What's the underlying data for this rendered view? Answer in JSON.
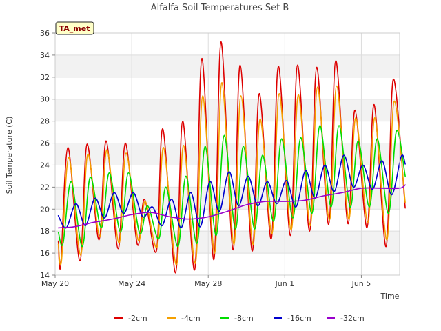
{
  "chart_data": {
    "type": "line",
    "title": "Alfalfa Soil Temperatures Set B",
    "xlabel": "Time",
    "ylabel": "Soil Temperature (C)",
    "badge": "TA_met",
    "ylim": [
      14,
      36
    ],
    "xlim": [
      "2024-05-20",
      "2024-06-07"
    ],
    "yticks": [
      14,
      16,
      18,
      20,
      22,
      24,
      26,
      28,
      30,
      32,
      34,
      36
    ],
    "xticks": [
      {
        "date": "2024-05-20",
        "label": "May 20"
      },
      {
        "date": "2024-05-24",
        "label": "May 24"
      },
      {
        "date": "2024-05-28",
        "label": "May 28"
      },
      {
        "date": "2024-06-01",
        "label": "Jun 1"
      },
      {
        "date": "2024-06-05",
        "label": "Jun 5"
      }
    ],
    "grid": true,
    "legend": "bottom",
    "series": [
      {
        "name": "-2cm",
        "color": "#dd0000",
        "points": [
          [
            "2024-05-20 04:00",
            17.1
          ],
          [
            "2024-05-20 07:00",
            14.9
          ],
          [
            "2024-05-20 16:00",
            25.6
          ],
          [
            "2024-05-21 07:00",
            15.3
          ],
          [
            "2024-05-21 16:00",
            25.9
          ],
          [
            "2024-05-22 07:00",
            17.2
          ],
          [
            "2024-05-22 16:00",
            26.2
          ],
          [
            "2024-05-23 07:00",
            16.4
          ],
          [
            "2024-05-23 16:00",
            26.0
          ],
          [
            "2024-05-24 07:00",
            16.8
          ],
          [
            "2024-05-24 16:00",
            20.9
          ],
          [
            "2024-05-25 07:00",
            16.2
          ],
          [
            "2024-05-25 15:00",
            27.3
          ],
          [
            "2024-05-26 07:00",
            14.2
          ],
          [
            "2024-05-26 16:00",
            28.0
          ],
          [
            "2024-05-27 07:00",
            14.5
          ],
          [
            "2024-05-27 16:00",
            33.7
          ],
          [
            "2024-05-28 07:00",
            15.4
          ],
          [
            "2024-05-28 16:00",
            35.2
          ],
          [
            "2024-05-29 07:00",
            16.3
          ],
          [
            "2024-05-29 16:00",
            33.1
          ],
          [
            "2024-05-30 07:00",
            16.2
          ],
          [
            "2024-05-30 16:00",
            30.5
          ],
          [
            "2024-05-31 07:00",
            17.3
          ],
          [
            "2024-05-31 16:00",
            33.0
          ],
          [
            "2024-06-01 07:00",
            17.6
          ],
          [
            "2024-06-01 16:00",
            33.1
          ],
          [
            "2024-06-02 07:00",
            18.0
          ],
          [
            "2024-06-02 16:00",
            32.9
          ],
          [
            "2024-06-03 07:00",
            18.6
          ],
          [
            "2024-06-03 16:00",
            33.5
          ],
          [
            "2024-06-04 07:00",
            18.7
          ],
          [
            "2024-06-04 16:00",
            29.0
          ],
          [
            "2024-06-05 07:00",
            18.3
          ],
          [
            "2024-06-05 16:00",
            29.5
          ],
          [
            "2024-06-06 07:00",
            16.6
          ],
          [
            "2024-06-06 16:00",
            31.8
          ],
          [
            "2024-06-07 07:00",
            20.1
          ]
        ]
      },
      {
        "name": "-4cm",
        "color": "#f5a000",
        "points": [
          [
            "2024-05-20 04:00",
            16.8
          ],
          [
            "2024-05-20 08:00",
            15.3
          ],
          [
            "2024-05-20 17:00",
            24.7
          ],
          [
            "2024-05-21 08:00",
            15.8
          ],
          [
            "2024-05-21 17:00",
            25.0
          ],
          [
            "2024-05-22 08:00",
            17.5
          ],
          [
            "2024-05-22 17:00",
            25.4
          ],
          [
            "2024-05-23 08:00",
            16.9
          ],
          [
            "2024-05-23 17:00",
            25.1
          ],
          [
            "2024-05-24 08:00",
            17.2
          ],
          [
            "2024-05-24 17:00",
            20.7
          ],
          [
            "2024-05-25 08:00",
            16.6
          ],
          [
            "2024-05-25 16:00",
            25.6
          ],
          [
            "2024-05-26 08:00",
            14.9
          ],
          [
            "2024-05-26 17:00",
            25.8
          ],
          [
            "2024-05-27 08:00",
            15.1
          ],
          [
            "2024-05-27 17:00",
            30.3
          ],
          [
            "2024-05-28 08:00",
            16.0
          ],
          [
            "2024-05-28 17:00",
            31.5
          ],
          [
            "2024-05-29 08:00",
            16.8
          ],
          [
            "2024-05-29 17:00",
            30.3
          ],
          [
            "2024-05-30 08:00",
            16.8
          ],
          [
            "2024-05-30 17:00",
            28.2
          ],
          [
            "2024-05-31 08:00",
            17.8
          ],
          [
            "2024-05-31 17:00",
            30.5
          ],
          [
            "2024-06-01 08:00",
            18.1
          ],
          [
            "2024-06-01 17:00",
            30.4
          ],
          [
            "2024-06-02 08:00",
            18.5
          ],
          [
            "2024-06-02 17:00",
            31.1
          ],
          [
            "2024-06-03 08:00",
            19.0
          ],
          [
            "2024-06-03 17:00",
            31.2
          ],
          [
            "2024-06-04 08:00",
            19.1
          ],
          [
            "2024-06-04 17:00",
            28.3
          ],
          [
            "2024-06-05 08:00",
            18.8
          ],
          [
            "2024-06-05 17:00",
            28.3
          ],
          [
            "2024-06-06 08:00",
            17.2
          ],
          [
            "2024-06-06 17:00",
            29.8
          ],
          [
            "2024-06-07 07:00",
            20.6
          ]
        ]
      },
      {
        "name": "-8cm",
        "color": "#00dd00",
        "points": [
          [
            "2024-05-20 04:00",
            17.9
          ],
          [
            "2024-05-20 10:00",
            16.9
          ],
          [
            "2024-05-20 20:00",
            22.5
          ],
          [
            "2024-05-21 10:00",
            16.6
          ],
          [
            "2024-05-21 20:00",
            22.9
          ],
          [
            "2024-05-22 10:00",
            18.3
          ],
          [
            "2024-05-22 20:00",
            23.3
          ],
          [
            "2024-05-23 10:00",
            17.9
          ],
          [
            "2024-05-23 20:00",
            23.3
          ],
          [
            "2024-05-24 10:00",
            17.8
          ],
          [
            "2024-05-24 20:00",
            20.3
          ],
          [
            "2024-05-25 10:00",
            17.3
          ],
          [
            "2024-05-25 19:00",
            22.0
          ],
          [
            "2024-05-26 10:00",
            16.6
          ],
          [
            "2024-05-26 20:00",
            23.0
          ],
          [
            "2024-05-27 10:00",
            16.9
          ],
          [
            "2024-05-27 20:00",
            25.7
          ],
          [
            "2024-05-28 10:00",
            17.6
          ],
          [
            "2024-05-28 20:00",
            26.7
          ],
          [
            "2024-05-29 10:00",
            18.2
          ],
          [
            "2024-05-29 20:00",
            25.7
          ],
          [
            "2024-05-30 10:00",
            18.2
          ],
          [
            "2024-05-30 20:00",
            24.9
          ],
          [
            "2024-05-31 10:00",
            18.9
          ],
          [
            "2024-05-31 20:00",
            26.4
          ],
          [
            "2024-06-01 10:00",
            19.2
          ],
          [
            "2024-06-01 20:00",
            26.5
          ],
          [
            "2024-06-02 10:00",
            19.6
          ],
          [
            "2024-06-02 20:00",
            27.6
          ],
          [
            "2024-06-03 10:00",
            20.2
          ],
          [
            "2024-06-03 20:00",
            27.6
          ],
          [
            "2024-06-04 10:00",
            20.2
          ],
          [
            "2024-06-04 20:00",
            26.2
          ],
          [
            "2024-06-05 10:00",
            20.2
          ],
          [
            "2024-06-05 20:00",
            26.4
          ],
          [
            "2024-06-06 10:00",
            19.6
          ],
          [
            "2024-06-06 20:00",
            27.1
          ],
          [
            "2024-06-07 07:00",
            23.0
          ]
        ]
      },
      {
        "name": "-16cm",
        "color": "#0000cc",
        "points": [
          [
            "2024-05-20 04:00",
            19.4
          ],
          [
            "2024-05-20 14:00",
            18.3
          ],
          [
            "2024-05-21 02:00",
            20.5
          ],
          [
            "2024-05-21 14:00",
            18.5
          ],
          [
            "2024-05-22 02:00",
            21.0
          ],
          [
            "2024-05-22 14:00",
            19.2
          ],
          [
            "2024-05-23 02:00",
            21.5
          ],
          [
            "2024-05-23 14:00",
            19.6
          ],
          [
            "2024-05-24 02:00",
            21.5
          ],
          [
            "2024-05-24 14:00",
            19.3
          ],
          [
            "2024-05-25 02:00",
            20.2
          ],
          [
            "2024-05-25 14:00",
            18.5
          ],
          [
            "2024-05-26 02:00",
            20.9
          ],
          [
            "2024-05-26 14:00",
            18.3
          ],
          [
            "2024-05-27 02:00",
            21.5
          ],
          [
            "2024-05-27 14:00",
            18.4
          ],
          [
            "2024-05-28 02:00",
            22.5
          ],
          [
            "2024-05-28 14:00",
            19.8
          ],
          [
            "2024-05-29 02:00",
            23.4
          ],
          [
            "2024-05-29 14:00",
            20.3
          ],
          [
            "2024-05-30 02:00",
            23.0
          ],
          [
            "2024-05-30 14:00",
            20.3
          ],
          [
            "2024-05-31 02:00",
            22.5
          ],
          [
            "2024-05-31 14:00",
            20.5
          ],
          [
            "2024-06-01 02:00",
            22.6
          ],
          [
            "2024-06-01 14:00",
            20.2
          ],
          [
            "2024-06-02 02:00",
            23.5
          ],
          [
            "2024-06-02 14:00",
            21.0
          ],
          [
            "2024-06-03 02:00",
            24.0
          ],
          [
            "2024-06-03 14:00",
            21.6
          ],
          [
            "2024-06-04 02:00",
            24.9
          ],
          [
            "2024-06-04 14:00",
            22.0
          ],
          [
            "2024-06-05 02:00",
            24.0
          ],
          [
            "2024-06-05 14:00",
            21.8
          ],
          [
            "2024-06-06 02:00",
            24.4
          ],
          [
            "2024-06-06 14:00",
            21.3
          ],
          [
            "2024-06-07 02:00",
            24.8
          ],
          [
            "2024-06-07 07:00",
            24.1
          ]
        ]
      },
      {
        "name": "-32cm",
        "color": "#9900cc",
        "points": [
          [
            "2024-05-20 04:00",
            18.3
          ],
          [
            "2024-05-21 00:00",
            18.4
          ],
          [
            "2024-05-22 00:00",
            18.8
          ],
          [
            "2024-05-23 00:00",
            19.1
          ],
          [
            "2024-05-24 00:00",
            19.5
          ],
          [
            "2024-05-25 00:00",
            19.7
          ],
          [
            "2024-05-26 00:00",
            19.3
          ],
          [
            "2024-05-27 00:00",
            19.1
          ],
          [
            "2024-05-28 00:00",
            19.3
          ],
          [
            "2024-05-29 00:00",
            19.8
          ],
          [
            "2024-05-30 00:00",
            20.4
          ],
          [
            "2024-05-31 00:00",
            20.7
          ],
          [
            "2024-06-01 00:00",
            20.7
          ],
          [
            "2024-06-02 00:00",
            20.8
          ],
          [
            "2024-06-03 00:00",
            21.2
          ],
          [
            "2024-06-04 00:00",
            21.5
          ],
          [
            "2024-06-05 00:00",
            21.9
          ],
          [
            "2024-06-06 00:00",
            21.9
          ],
          [
            "2024-06-07 00:00",
            21.9
          ],
          [
            "2024-06-07 07:00",
            22.2
          ]
        ]
      }
    ]
  }
}
